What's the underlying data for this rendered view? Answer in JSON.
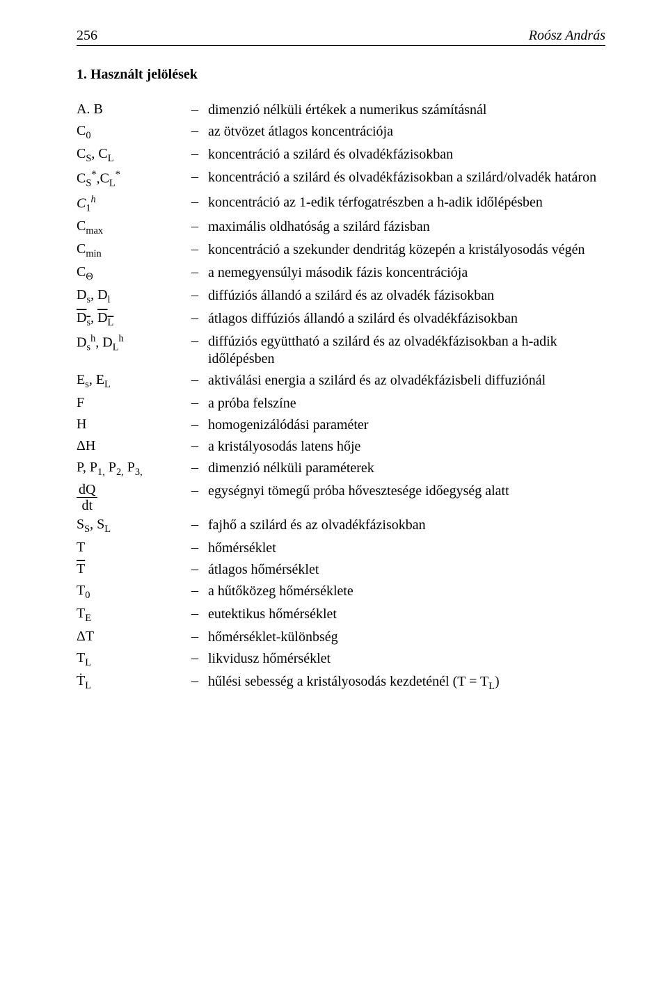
{
  "header": {
    "page_number": "256",
    "author": "Roósz András"
  },
  "section": {
    "number": "1.",
    "title": "Használt jelölések"
  },
  "rows": [
    {
      "symbol_html": "A. B",
      "desc": "dimenzió nélküli értékek a numerikus számításnál"
    },
    {
      "symbol_html": "C<span class='sub'>0</span>",
      "desc": "az ötvözet átlagos koncentrációja"
    },
    {
      "symbol_html": "C<span class='sub'>S</span>, C<span class='sub'>L</span>",
      "desc": "koncentráció a szilárd és olvadékfázisokban"
    },
    {
      "symbol_html": "C<span class='sub'>S</span><span class='sup'>*</span>,C<span class='sub'>L</span><span class='sup'>*</span>",
      "desc": "koncentráció a szilárd és olvadékfázisokban a szilárd/olvadék határon"
    },
    {
      "symbol_html": "<i>C</i><span class='sub'>1</span><span class='sup'><i>h</i></span>",
      "desc": "koncentráció az 1-edik térfogatrészben a h-adik időlépésben"
    },
    {
      "symbol_html": "C<span class='sub'>max</span>",
      "desc": "maximális oldhatóság a szilárd fázisban"
    },
    {
      "symbol_html": "C<span class='sub'>min</span>",
      "desc": "koncentráció a szekunder dendritág közepén a kristályosodás végén"
    },
    {
      "symbol_html": "C<span class='sub'>Θ</span>",
      "desc": "a nemegyensúlyi második fázis koncentrációja"
    },
    {
      "symbol_html": "D<span class='sub'>s</span>, D<span class='sub'>l</span>",
      "desc": "diffúziós állandó a szilárd és az olvadék fázisokban"
    },
    {
      "symbol_html": "<span class='over'>D<span class='sub'>s</span></span>, <span class='over'>D<span class='sub'>L</span></span>",
      "desc": "átlagos diffúziós állandó a szilárd és olvadékfázisokban"
    },
    {
      "symbol_html": "D<span class='sub'>s</span><span class='sup'>h</span>, D<span class='sub'>L</span><span class='sup'>h</span>",
      "desc": "diffúziós együttható a szilárd és az olvadékfázisokban a h-adik időlépésben"
    },
    {
      "symbol_html": "E<span class='sub'>s</span>, E<span class='sub'>L</span>",
      "desc": "aktiválási energia a szilárd és az olvadékfázisbeli diffuziónál"
    },
    {
      "symbol_html": "F",
      "desc": "a próba felszíne"
    },
    {
      "symbol_html": "H",
      "desc": "homogenizálódási paraméter"
    },
    {
      "symbol_html": "ΔH",
      "desc": "a kristályosodás latens hője"
    },
    {
      "symbol_html": "P, P<span class='sub'>1,</span> P<span class='sub'>2,</span> P<span class='sub'>3,</span>",
      "desc": "dimenzió nélküli paraméterek"
    },
    {
      "symbol_html": "<span class='frac'><span class='num'>dQ</span><span class='den'>dt</span></span>",
      "desc": "egységnyi tömegű próba hővesztesége időegység alatt"
    },
    {
      "symbol_html": "S<span class='sub'>S</span>, S<span class='sub'>L</span>",
      "desc": "fajhő a szilárd és az olvadékfázisokban"
    },
    {
      "symbol_html": "T",
      "desc": "hőmérséklet"
    },
    {
      "symbol_html": "<span class='over'>T</span>",
      "desc": "átlagos hőmérséklet"
    },
    {
      "symbol_html": "T<span class='sub'>0</span>",
      "desc": "a hűtőközeg hőmérséklete"
    },
    {
      "symbol_html": "T<span class='sub'>E</span>",
      "desc": "eutektikus hőmérséklet"
    },
    {
      "symbol_html": "ΔT",
      "desc": "hőmérséklet-különbség"
    },
    {
      "symbol_html": "T<span class='sub'>L</span>",
      "desc": "likvidusz hőmérséklet"
    },
    {
      "symbol_html": "Ṫ<span class='sub'>L</span>",
      "desc": "hűlési sebesség a kristályosodás kezdeténél (T = T<sub style='font-size:0.72em'>L</sub>)"
    }
  ]
}
